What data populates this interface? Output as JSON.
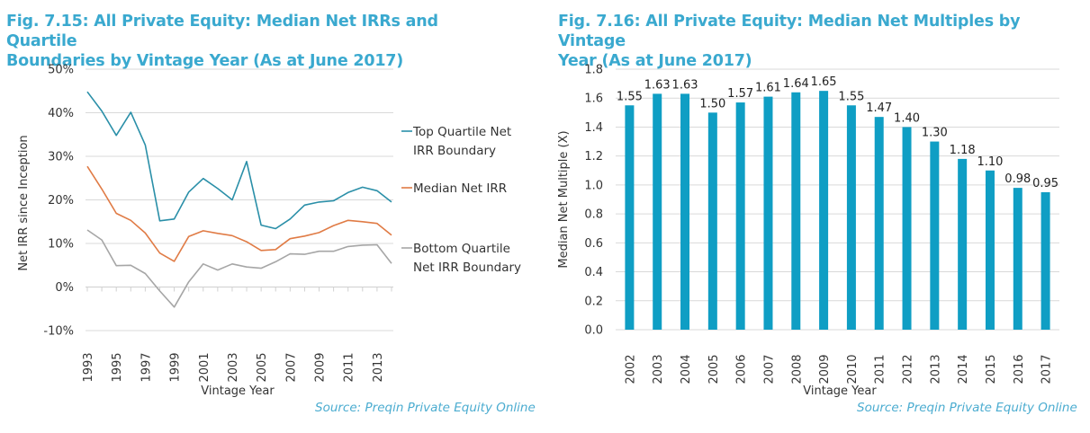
{
  "figures": {
    "left_title_line1": "Fig. 7.15: All Private Equity: Median Net IRRs and Quartile",
    "left_title_line2": "Boundaries by Vintage Year (As at June 2017)",
    "right_title_line1": "Fig. 7.16: All Private Equity: Median Net Multiples by Vintage",
    "right_title_line2": "Year (As at June 2017)",
    "left_source": "Source: Preqin Private Equity Online",
    "right_source": "Source: Preqin Private Equity Online"
  },
  "colors": {
    "title": "#3aa9cf",
    "top_quartile": "#2a8fa8",
    "median": "#e07b45",
    "bottom_quartile": "#a6a6a6",
    "bar": "#0f9ec4",
    "grid": "#d9d9d9"
  },
  "chart_data": [
    {
      "type": "line",
      "title": "Fig. 7.15: All Private Equity: Median Net IRRs and Quartile Boundaries by Vintage Year (As at June 2017)",
      "xlabel": "Vintage Year",
      "ylabel": "Net IRR since Inception",
      "x": [
        1993,
        1994,
        1995,
        1996,
        1997,
        1998,
        1999,
        2000,
        2001,
        2002,
        2003,
        2004,
        2005,
        2006,
        2007,
        2008,
        2009,
        2010,
        2011,
        2012,
        2013,
        2014
      ],
      "x_tick_labels": [
        "1993",
        "1995",
        "1997",
        "1999",
        "2001",
        "2003",
        "2005",
        "2007",
        "2009",
        "2011",
        "2013"
      ],
      "ylim": [
        -10,
        50
      ],
      "y_ticks": [
        50,
        40,
        30,
        20,
        10,
        0,
        -10
      ],
      "y_tick_labels": [
        "50%",
        "40%",
        "30%",
        "20%",
        "10%",
        "0%",
        "-10%"
      ],
      "grid": true,
      "legend_position": "right",
      "series": [
        {
          "name": "Top Quartile Net IRR Boundary",
          "legend_line1": "Top Quartile Net",
          "legend_line2": "IRR Boundary",
          "values": [
            44.8,
            40.4,
            34.8,
            40.1,
            32.6,
            15.2,
            15.6,
            21.8,
            24.9,
            22.6,
            20.0,
            28.8,
            14.2,
            13.4,
            15.6,
            18.8,
            19.5,
            19.8,
            21.7,
            22.9,
            22.1,
            19.5
          ]
        },
        {
          "name": "Median Net IRR",
          "legend_line1": "Median Net IRR",
          "legend_line2": "",
          "values": [
            27.7,
            22.5,
            16.9,
            15.3,
            12.4,
            7.8,
            5.9,
            11.6,
            12.9,
            12.3,
            11.8,
            10.4,
            8.4,
            8.6,
            11.1,
            11.7,
            12.5,
            14.1,
            15.3,
            15.0,
            14.6,
            11.9
          ]
        },
        {
          "name": "Bottom Quartile Net IRR Boundary",
          "legend_line1": "Bottom Quartile",
          "legend_line2": "Net IRR Boundary",
          "values": [
            13.1,
            10.8,
            4.9,
            5.0,
            3.1,
            -0.9,
            -4.6,
            1.2,
            5.3,
            3.9,
            5.3,
            4.6,
            4.3,
            5.8,
            7.6,
            7.5,
            8.2,
            8.2,
            9.3,
            9.6,
            9.7,
            5.4
          ]
        }
      ]
    },
    {
      "type": "bar",
      "title": "Fig. 7.16: All Private Equity: Median Net Multiples by Vintage Year (As at June 2017)",
      "xlabel": "Vintage Year",
      "ylabel": "Median Net Multiple (X)",
      "categories": [
        "2002",
        "2003",
        "2004",
        "2005",
        "2006",
        "2007",
        "2008",
        "2009",
        "2010",
        "2011",
        "2012",
        "2013",
        "2014",
        "2015",
        "2016",
        "2017"
      ],
      "values": [
        1.55,
        1.63,
        1.63,
        1.5,
        1.57,
        1.61,
        1.64,
        1.65,
        1.55,
        1.47,
        1.4,
        1.3,
        1.18,
        1.1,
        0.98,
        0.95
      ],
      "data_labels": [
        "1.55",
        "1.63",
        "1.63",
        "1.50",
        "1.57",
        "1.61",
        "1.64",
        "1.65",
        "1.55",
        "1.47",
        "1.40",
        "1.30",
        "1.18",
        "1.10",
        "0.98",
        "0.95"
      ],
      "ylim": [
        0,
        1.8
      ],
      "y_ticks": [
        1.8,
        1.6,
        1.4,
        1.2,
        1.0,
        0.8,
        0.6,
        0.4,
        0.2,
        0.0
      ],
      "y_tick_labels": [
        "1.8",
        "1.6",
        "1.4",
        "1.2",
        "1.0",
        "0.8",
        "0.6",
        "0.4",
        "0.2",
        "0.0"
      ],
      "grid": true,
      "legend_position": "none"
    }
  ]
}
